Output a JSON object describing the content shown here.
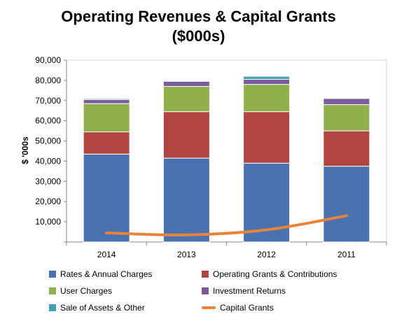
{
  "chart_data": {
    "type": "bar",
    "title": "Operating Revenues & Capital Grants",
    "subtitle": "($000s)",
    "ylabel": "$ '000s",
    "ylim": [
      0,
      90000
    ],
    "yticks": [
      0,
      10000,
      20000,
      30000,
      40000,
      50000,
      60000,
      70000,
      80000,
      90000
    ],
    "ytick_labels": [
      "",
      "10,000",
      "20,000",
      "30,000",
      "40,000",
      "50,000",
      "60,000",
      "70,000",
      "80,000",
      "90,000"
    ],
    "categories": [
      "2014",
      "2013",
      "2012",
      "2011"
    ],
    "stacked": true,
    "series": [
      {
        "name": "Rates & Annual Charges",
        "type": "bar",
        "color": "#4a72b0",
        "values": [
          43500,
          41500,
          39000,
          37500
        ]
      },
      {
        "name": "Operating Grants & Contributions",
        "type": "bar",
        "color": "#b24441",
        "values": [
          11000,
          23000,
          25500,
          17500
        ]
      },
      {
        "name": "User Charges",
        "type": "bar",
        "color": "#8fb04a",
        "values": [
          14000,
          12500,
          13500,
          13000
        ]
      },
      {
        "name": "Investment Returns",
        "type": "bar",
        "color": "#7a5c9e",
        "values": [
          2000,
          2500,
          2500,
          3000
        ]
      },
      {
        "name": "Sale of Assets & Other",
        "type": "bar",
        "color": "#3fa0b7",
        "values": [
          500,
          0,
          1500,
          0
        ]
      },
      {
        "name": "Capital Grants",
        "type": "line",
        "color": "#e8843a",
        "values": [
          4500,
          3500,
          6000,
          13000
        ]
      }
    ],
    "legend_position": "bottom",
    "grid": false
  }
}
